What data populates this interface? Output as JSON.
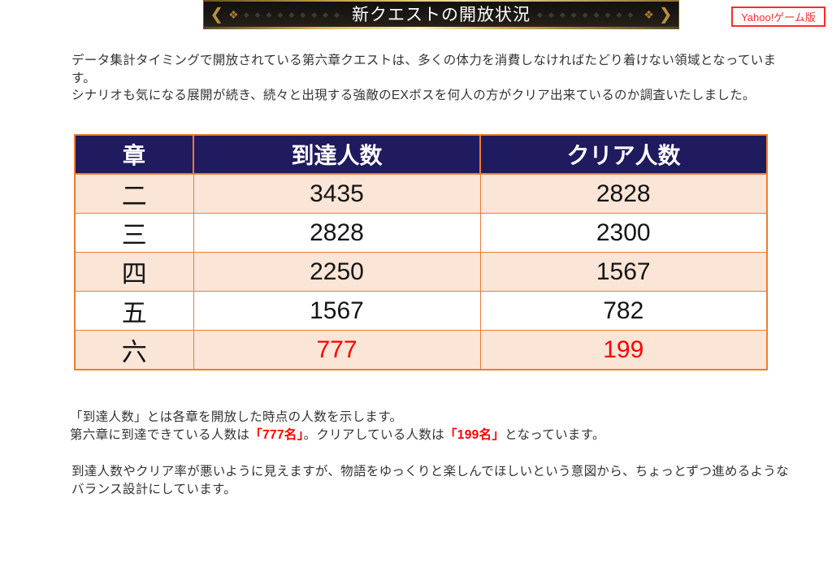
{
  "banner": {
    "title": "新クエストの開放状況",
    "left_chevron": "❮",
    "right_chevron": "❯",
    "cluster": "❖",
    "diamonds": "◆◆◆◆◆◆◆◆◆",
    "colors": {
      "background": "#1a1713",
      "gold_trim": "#d9b95e",
      "title_text": "#ffffff"
    }
  },
  "badge": {
    "label": "Yahoo!ゲーム版",
    "color": "#ff2b2b"
  },
  "intro": {
    "sentence1": "データ集計タイミングで開放されている第六章クエストは、多くの体力を消費しなければたどり着けない領域となっています。",
    "sentence2": "シナリオも気になる展開が続き、続々と出現する強敵のEXボスを何人の方がクリア出来ているのか調査いたしました。"
  },
  "table": {
    "headers": [
      "章",
      "到達人数",
      "クリア人数"
    ],
    "rows": [
      {
        "chapter": "二",
        "reached": "3435",
        "cleared": "2828"
      },
      {
        "chapter": "三",
        "reached": "2828",
        "cleared": "2300"
      },
      {
        "chapter": "四",
        "reached": "2250",
        "cleared": "1567"
      },
      {
        "chapter": "五",
        "reached": "1567",
        "cleared": "782"
      },
      {
        "chapter": "六",
        "reached": "777",
        "cleared": "199"
      }
    ],
    "colors": {
      "header_bg": "#201a5e",
      "header_text": "#ffffff",
      "border": "#ed7d31",
      "row_alt_bg": "#fbe5d6",
      "row_bg": "#ffffff",
      "highlight_text": "#ff0000"
    }
  },
  "notes": {
    "line1": "「到達人数」とは各章を開放した時点の人数を示します。",
    "line2": {
      "before": "第六章に到達できている人数は",
      "reached_value": "「777名」",
      "middle": "。クリアしている人数は",
      "cleared_value": "「199名」",
      "after": "となっています。"
    },
    "paragraph": "到達人数やクリア率が悪いように見えますが、物語をゆっくりと楽しんでほしいという意図から、ちょっとずつ進めるようなバランス設計にしています。"
  }
}
